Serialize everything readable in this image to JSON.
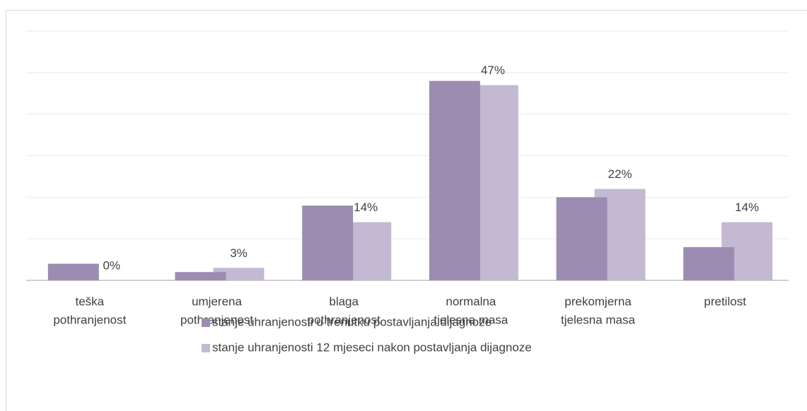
{
  "chart_data": {
    "type": "bar",
    "categories": [
      [
        "teška",
        "pothranjenost"
      ],
      [
        "umjerena",
        "pothranjenost"
      ],
      [
        "blaga",
        "pothranjenost"
      ],
      [
        "normalna",
        "tjelesna masa"
      ],
      [
        "prekomjerna",
        "tjelesna masa"
      ],
      [
        "pretilost"
      ]
    ],
    "series": [
      {
        "name": "stanje uhranjenosti u trenutku postavljanja dijagnoze",
        "color": "#9d8cb1",
        "values": [
          4,
          2,
          18,
          48,
          20,
          8
        ]
      },
      {
        "name": "stanje uhranjenosti 12 mjeseci nakon postavljanja dijagnoze",
        "color": "#c3b9d3",
        "values": [
          0,
          3,
          14,
          47,
          22,
          14
        ],
        "value_labels": [
          "0%",
          "3%",
          "14%",
          "47%",
          "22%",
          "14%"
        ]
      }
    ],
    "ylim": [
      0,
      60
    ],
    "yticks": [
      0,
      10,
      20,
      30,
      40,
      50,
      60
    ],
    "grid": true,
    "legend": "bottom"
  }
}
